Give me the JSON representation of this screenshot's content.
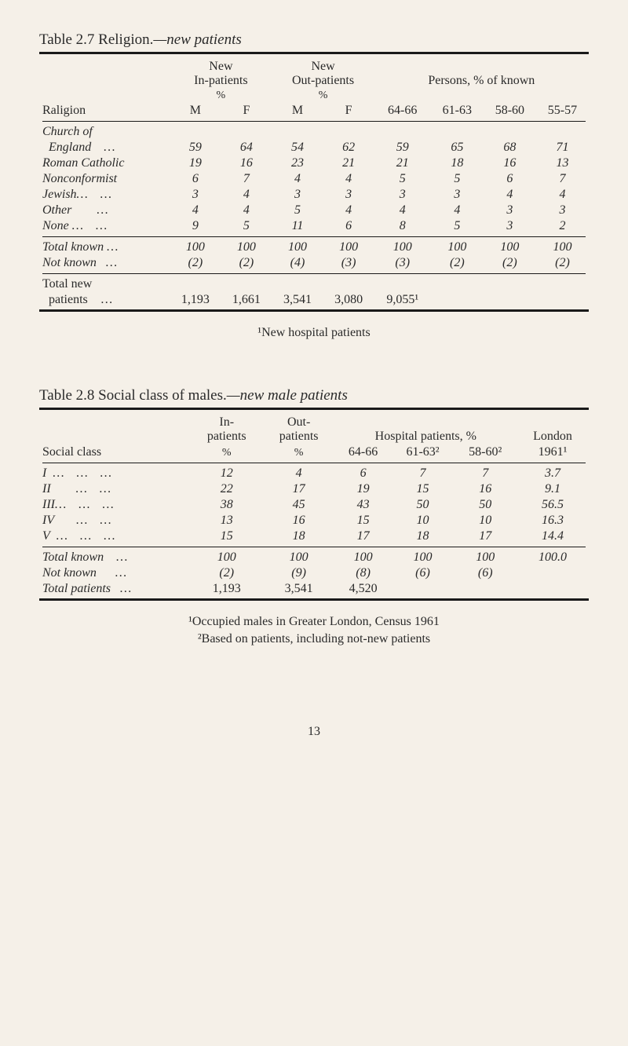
{
  "table1": {
    "title_prefix": "Table 2.7 Religion.",
    "title_suffix": "—new patients",
    "headers": {
      "col1": "Raligion",
      "new_in": "New\nIn-patients",
      "new_out": "New\nOut-patients",
      "persons": "Persons, % of known",
      "pct": "%",
      "M": "M",
      "F": "F",
      "yr1": "64-66",
      "yr2": "61-63",
      "yr3": "58-60",
      "yr4": "55-57"
    },
    "rows": [
      {
        "label": "Church of",
        "values": [
          "",
          "",
          "",
          "",
          "",
          "",
          "",
          ""
        ]
      },
      {
        "label": "  England    …",
        "values": [
          "59",
          "64",
          "54",
          "62",
          "59",
          "65",
          "68",
          "71"
        ]
      },
      {
        "label": "Roman Catholic",
        "values": [
          "19",
          "16",
          "23",
          "21",
          "21",
          "18",
          "16",
          "13"
        ]
      },
      {
        "label": "Nonconformist",
        "values": [
          "6",
          "7",
          "4",
          "4",
          "5",
          "5",
          "6",
          "7"
        ]
      },
      {
        "label": "Jewish…    …",
        "values": [
          "3",
          "4",
          "3",
          "3",
          "3",
          "3",
          "4",
          "4"
        ]
      },
      {
        "label": "Other        …",
        "values": [
          "4",
          "4",
          "5",
          "4",
          "4",
          "4",
          "3",
          "3"
        ]
      },
      {
        "label": "None …    …",
        "values": [
          "9",
          "5",
          "11",
          "6",
          "8",
          "5",
          "3",
          "2"
        ]
      }
    ],
    "totals": [
      {
        "label": "Total known …",
        "values": [
          "100",
          "100",
          "100",
          "100",
          "100",
          "100",
          "100",
          "100"
        ]
      },
      {
        "label": "Not known   …",
        "values": [
          "(2)",
          "(2)",
          "(4)",
          "(3)",
          "(3)",
          "(2)",
          "(2)",
          "(2)"
        ]
      }
    ],
    "grand": {
      "label1": "Total new",
      "label2": "  patients    …",
      "values": [
        "1,193",
        "1,661",
        "3,541",
        "3,080",
        "9,055¹",
        "",
        "",
        ""
      ]
    },
    "footnote": "¹New hospital patients"
  },
  "table2": {
    "title_prefix": "Table 2.8 Social class of males.",
    "title_suffix": "—new male patients",
    "headers": {
      "col1": "Social class",
      "in": "In-\npatients",
      "out": "Out-\npatients",
      "hosp": "Hospital patients, %",
      "london": "London",
      "pct": "%",
      "yr1": "64-66",
      "yr2": "61-63²",
      "yr3": "58-60²",
      "yr4": "1961¹"
    },
    "rows": [
      {
        "label": "I  …    …    …",
        "values": [
          "12",
          "4",
          "6",
          "7",
          "7",
          "3.7"
        ]
      },
      {
        "label": "II        …    …",
        "values": [
          "22",
          "17",
          "19",
          "15",
          "16",
          "9.1"
        ]
      },
      {
        "label": "III…    …    …",
        "values": [
          "38",
          "45",
          "43",
          "50",
          "50",
          "56.5"
        ]
      },
      {
        "label": "IV       …    …",
        "values": [
          "13",
          "16",
          "15",
          "10",
          "10",
          "16.3"
        ]
      },
      {
        "label": "V  …    …    …",
        "values": [
          "15",
          "18",
          "17",
          "18",
          "17",
          "14.4"
        ]
      }
    ],
    "totals": [
      {
        "label": "Total known    …",
        "values": [
          "100",
          "100",
          "100",
          "100",
          "100",
          "100.0"
        ]
      },
      {
        "label": "Not known      …",
        "values": [
          "(2)",
          "(9)",
          "(8)",
          "(6)",
          "(6)",
          ""
        ]
      },
      {
        "label": "Total patients   …",
        "values": [
          "1,193",
          "3,541",
          "4,520",
          "",
          "",
          ""
        ]
      }
    ],
    "footnote1": "¹Occupied males in Greater London, Census 1961",
    "footnote2": "²Based on patients, including not-new patients"
  },
  "pagenum": "13"
}
